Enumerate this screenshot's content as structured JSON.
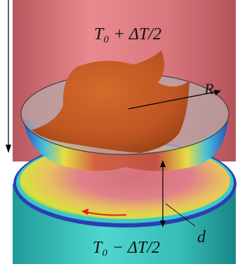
{
  "labels": {
    "top_temperature": "T₀ + ΔT/2",
    "radius": "R",
    "gap": "d",
    "bottom_temperature": "T₀ − ΔT/2"
  }
}
